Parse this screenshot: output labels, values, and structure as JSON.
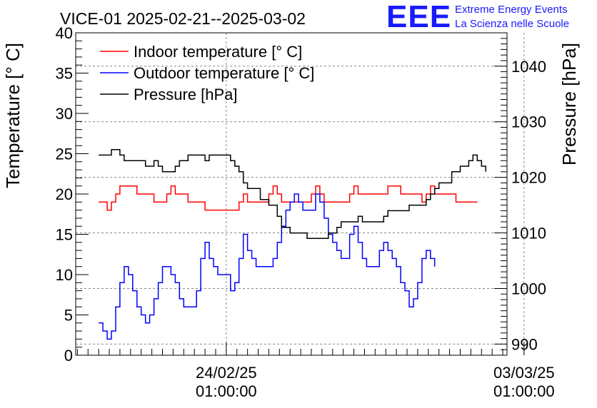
{
  "chart_data": {
    "type": "line",
    "title": "VICE-01 2025-02-21--2025-03-02",
    "ylabel": "Temperature [° C]",
    "y2label": "Pressure [hPa]",
    "ylim": [
      0,
      40
    ],
    "y2lim": [
      988,
      1046
    ],
    "xlim_days": [
      -0.54,
      9.6
    ],
    "yticks": [
      0,
      5,
      10,
      15,
      20,
      25,
      30,
      35,
      40
    ],
    "y2ticks": [
      990,
      1000,
      1010,
      1020,
      1030,
      1040
    ],
    "x_ticks": [
      {
        "day": 3,
        "date": "24/02/25",
        "time": "01:00:00"
      },
      {
        "day": 10,
        "date": "03/03/25",
        "time": "01:00:00"
      }
    ],
    "grid": true,
    "legend_position": "top-left",
    "x_unit": "days since 2025-02-21 01:00:00",
    "series": [
      {
        "name": "Indoor temperature [° C]",
        "color": "#ff0000",
        "axis": "left",
        "points": [
          [
            0.0,
            19
          ],
          [
            0.1,
            19
          ],
          [
            0.2,
            18
          ],
          [
            0.3,
            19
          ],
          [
            0.4,
            20
          ],
          [
            0.5,
            21
          ],
          [
            0.8,
            21
          ],
          [
            0.9,
            20
          ],
          [
            1.0,
            20
          ],
          [
            1.2,
            20
          ],
          [
            1.3,
            19
          ],
          [
            1.5,
            19
          ],
          [
            1.6,
            20
          ],
          [
            1.7,
            21
          ],
          [
            1.8,
            20
          ],
          [
            2.0,
            20
          ],
          [
            2.1,
            19
          ],
          [
            2.4,
            19
          ],
          [
            2.5,
            18
          ],
          [
            3.0,
            18
          ],
          [
            3.2,
            18
          ],
          [
            3.3,
            19
          ],
          [
            3.4,
            20
          ],
          [
            3.5,
            19
          ],
          [
            3.6,
            19
          ],
          [
            3.9,
            19
          ],
          [
            4.0,
            20
          ],
          [
            4.1,
            21
          ],
          [
            4.2,
            20
          ],
          [
            4.3,
            19
          ],
          [
            4.5,
            19
          ],
          [
            4.9,
            19
          ],
          [
            5.0,
            20
          ],
          [
            5.1,
            21
          ],
          [
            5.2,
            20
          ],
          [
            5.3,
            19
          ],
          [
            5.8,
            19
          ],
          [
            5.9,
            20
          ],
          [
            6.0,
            21
          ],
          [
            6.1,
            20
          ],
          [
            6.5,
            20
          ],
          [
            6.7,
            20
          ],
          [
            6.8,
            21
          ],
          [
            7.0,
            21
          ],
          [
            7.1,
            20
          ],
          [
            7.5,
            20
          ],
          [
            7.6,
            19
          ],
          [
            7.7,
            20
          ],
          [
            7.8,
            21
          ],
          [
            7.9,
            20
          ],
          [
            8.0,
            20
          ],
          [
            8.3,
            20
          ],
          [
            8.4,
            19
          ],
          [
            8.9,
            19
          ]
        ]
      },
      {
        "name": "Outdoor temperature [° C]",
        "color": "#0000ff",
        "axis": "left",
        "points": [
          [
            0.0,
            4
          ],
          [
            0.1,
            3
          ],
          [
            0.2,
            2
          ],
          [
            0.3,
            3
          ],
          [
            0.4,
            6
          ],
          [
            0.5,
            9
          ],
          [
            0.6,
            11
          ],
          [
            0.7,
            10
          ],
          [
            0.8,
            8
          ],
          [
            0.9,
            6
          ],
          [
            1.0,
            5
          ],
          [
            1.1,
            4
          ],
          [
            1.2,
            5
          ],
          [
            1.3,
            7
          ],
          [
            1.4,
            9
          ],
          [
            1.5,
            11
          ],
          [
            1.6,
            11
          ],
          [
            1.7,
            10
          ],
          [
            1.8,
            9
          ],
          [
            1.9,
            7
          ],
          [
            2.0,
            6
          ],
          [
            2.2,
            6
          ],
          [
            2.3,
            8
          ],
          [
            2.4,
            12
          ],
          [
            2.5,
            14
          ],
          [
            2.6,
            12
          ],
          [
            2.7,
            11
          ],
          [
            2.8,
            10
          ],
          [
            3.0,
            10
          ],
          [
            3.1,
            8
          ],
          [
            3.2,
            9
          ],
          [
            3.3,
            12
          ],
          [
            3.4,
            15
          ],
          [
            3.5,
            13
          ],
          [
            3.6,
            12
          ],
          [
            3.7,
            11
          ],
          [
            4.0,
            11
          ],
          [
            4.1,
            12
          ],
          [
            4.2,
            14
          ],
          [
            4.3,
            16
          ],
          [
            4.4,
            18
          ],
          [
            4.5,
            19
          ],
          [
            4.6,
            20
          ],
          [
            4.7,
            19
          ],
          [
            4.8,
            18
          ],
          [
            5.0,
            18
          ],
          [
            5.1,
            20
          ],
          [
            5.2,
            19
          ],
          [
            5.3,
            17
          ],
          [
            5.4,
            15
          ],
          [
            5.5,
            14
          ],
          [
            5.6,
            13
          ],
          [
            5.7,
            12
          ],
          [
            5.8,
            12
          ],
          [
            5.9,
            15
          ],
          [
            6.0,
            16
          ],
          [
            6.1,
            14
          ],
          [
            6.2,
            12
          ],
          [
            6.3,
            11
          ],
          [
            6.5,
            11
          ],
          [
            6.6,
            13
          ],
          [
            6.7,
            14
          ],
          [
            6.8,
            13
          ],
          [
            6.9,
            12
          ],
          [
            7.0,
            11
          ],
          [
            7.1,
            9
          ],
          [
            7.2,
            8
          ],
          [
            7.3,
            6
          ],
          [
            7.4,
            7
          ],
          [
            7.5,
            9
          ],
          [
            7.6,
            12
          ],
          [
            7.7,
            13
          ],
          [
            7.8,
            12
          ],
          [
            7.9,
            11
          ]
        ]
      },
      {
        "name": "Pressure [hPa]",
        "color": "#000000",
        "axis": "right",
        "points": [
          [
            0.0,
            1024
          ],
          [
            0.2,
            1024
          ],
          [
            0.3,
            1025
          ],
          [
            0.5,
            1024
          ],
          [
            0.6,
            1023
          ],
          [
            0.8,
            1023
          ],
          [
            1.0,
            1023
          ],
          [
            1.1,
            1022
          ],
          [
            1.2,
            1022
          ],
          [
            1.3,
            1023
          ],
          [
            1.4,
            1022
          ],
          [
            1.5,
            1021
          ],
          [
            1.7,
            1021
          ],
          [
            1.8,
            1022
          ],
          [
            1.9,
            1023
          ],
          [
            2.0,
            1023
          ],
          [
            2.1,
            1024
          ],
          [
            2.3,
            1024
          ],
          [
            2.5,
            1023
          ],
          [
            2.6,
            1024
          ],
          [
            2.8,
            1024
          ],
          [
            3.0,
            1024
          ],
          [
            3.1,
            1023
          ],
          [
            3.2,
            1022
          ],
          [
            3.3,
            1021
          ],
          [
            3.4,
            1019
          ],
          [
            3.5,
            1018
          ],
          [
            3.7,
            1018
          ],
          [
            3.8,
            1016
          ],
          [
            4.0,
            1015
          ],
          [
            4.2,
            1013
          ],
          [
            4.3,
            1011
          ],
          [
            4.5,
            1010
          ],
          [
            4.7,
            1010
          ],
          [
            4.9,
            1009
          ],
          [
            5.0,
            1009
          ],
          [
            5.1,
            1009
          ],
          [
            5.3,
            1009
          ],
          [
            5.4,
            1010
          ],
          [
            5.6,
            1011
          ],
          [
            5.7,
            1012
          ],
          [
            5.9,
            1012
          ],
          [
            6.0,
            1012
          ],
          [
            6.1,
            1013
          ],
          [
            6.2,
            1012
          ],
          [
            6.3,
            1012
          ],
          [
            6.5,
            1012
          ],
          [
            6.7,
            1013
          ],
          [
            6.8,
            1014
          ],
          [
            7.0,
            1014
          ],
          [
            7.1,
            1014
          ],
          [
            7.3,
            1015
          ],
          [
            7.5,
            1015
          ],
          [
            7.7,
            1016
          ],
          [
            7.8,
            1017
          ],
          [
            7.9,
            1018
          ],
          [
            8.0,
            1019
          ],
          [
            8.1,
            1019
          ],
          [
            8.3,
            1021
          ],
          [
            8.5,
            1022
          ],
          [
            8.7,
            1023
          ],
          [
            8.8,
            1024
          ],
          [
            8.9,
            1023
          ],
          [
            9.0,
            1022
          ],
          [
            9.1,
            1021
          ]
        ]
      }
    ]
  },
  "logo": {
    "mark": "EEE",
    "line1": "Extreme Energy Events",
    "line2": "La Scienza nelle Scuole"
  }
}
